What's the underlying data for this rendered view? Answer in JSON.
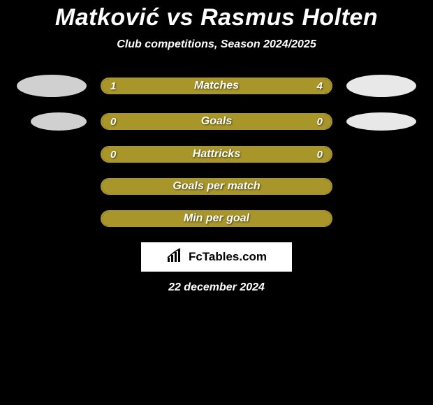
{
  "title": "Matković vs Rasmus Holten",
  "subtitle": "Club competitions, Season 2024/2025",
  "date": "22 december 2024",
  "branding": {
    "text": "FcTables.com"
  },
  "colors": {
    "background": "#000000",
    "text": "#ffffff",
    "avatar_left": "#d0d0d0",
    "avatar_right": "#e8e8e8",
    "bar_border": "#a8962a",
    "bar_fill": "#a8962a",
    "bar_empty_fill": "#a8962a",
    "branding_bg": "#ffffff",
    "branding_fg": "#000000"
  },
  "stats": [
    {
      "key": "matches",
      "label": "Matches",
      "left_value": "1",
      "right_value": "4",
      "left_pct": 20,
      "right_pct": 80,
      "show_avatars": true
    },
    {
      "key": "goals",
      "label": "Goals",
      "left_value": "0",
      "right_value": "0",
      "left_pct": 0,
      "right_pct": 0,
      "show_avatars": true,
      "empty_full_fill": true
    },
    {
      "key": "hattricks",
      "label": "Hattricks",
      "left_value": "0",
      "right_value": "0",
      "left_pct": 0,
      "right_pct": 0,
      "show_avatars": false,
      "empty_full_fill": true
    },
    {
      "key": "gpm",
      "label": "Goals per match",
      "left_value": "",
      "right_value": "",
      "left_pct": 0,
      "right_pct": 0,
      "show_avatars": false,
      "empty_full_fill": true
    },
    {
      "key": "mpg",
      "label": "Min per goal",
      "left_value": "",
      "right_value": "",
      "left_pct": 0,
      "right_pct": 0,
      "show_avatars": false,
      "empty_full_fill": true
    }
  ]
}
